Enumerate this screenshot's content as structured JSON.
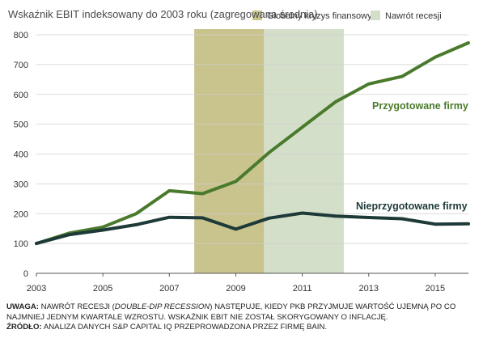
{
  "chart_data": {
    "type": "line",
    "ylabel": "Wskaźnik EBIT indeksowany do 2003 roku (zagregowana średnia)",
    "ylim": [
      0,
      800
    ],
    "yticks": [
      0,
      100,
      200,
      300,
      400,
      500,
      600,
      700,
      800
    ],
    "xlim": [
      2003,
      2016
    ],
    "xticks": [
      2003,
      2005,
      2007,
      2009,
      2011,
      2013,
      2015
    ],
    "grid": "horizontal",
    "legend_position": "top",
    "shaded_periods": [
      {
        "name": "Globalny kryzys finansowy",
        "start": 2007.75,
        "end": 2009.85,
        "color": "#c9c38e"
      },
      {
        "name": "Nawrót recesji",
        "start": 2009.85,
        "end": 2012.25,
        "color": "#d3dfc9"
      }
    ],
    "series": [
      {
        "name": "Przygotowane firmy",
        "color": "#4a7a2b",
        "x": [
          2003,
          2004,
          2005,
          2006,
          2007,
          2008,
          2009,
          2010,
          2011,
          2012,
          2013,
          2014,
          2015,
          2016
        ],
        "values": [
          100,
          135,
          155,
          200,
          277,
          267,
          308,
          405,
          490,
          575,
          635,
          660,
          725,
          773
        ]
      },
      {
        "name": "Nieprzygotowane firmy",
        "color": "#1d3a38",
        "x": [
          2003,
          2004,
          2005,
          2006,
          2007,
          2008,
          2009,
          2010,
          2011,
          2012,
          2013,
          2014,
          2015,
          2016
        ],
        "values": [
          100,
          130,
          145,
          163,
          188,
          186,
          148,
          185,
          202,
          192,
          187,
          183,
          165,
          166
        ]
      }
    ]
  },
  "notes": {
    "uwaga_label": "UWAGA:",
    "uwaga_part1": " NAWRÓT RECESJI (",
    "uwaga_italic": "DOUBLE-DIP RECESSION",
    "uwaga_part2": ") NASTĘPUJE, KIEDY PKB PRZYJMUJE WARTOŚĆ UJEMNĄ PO CO NAJMNIEJ JEDNYM KWARTALE WZROSTU. WSKAŹNIK EBIT NIE ZOSTAŁ SKORYGOWANY O INFLACJĘ.",
    "zrodlo_label": "ŹRÓDŁO:",
    "zrodlo_text": " ANALIZA DANYCH S&P CAPITAL IQ PRZEPROWADZONA PRZEZ FIRMĘ BAIN."
  }
}
